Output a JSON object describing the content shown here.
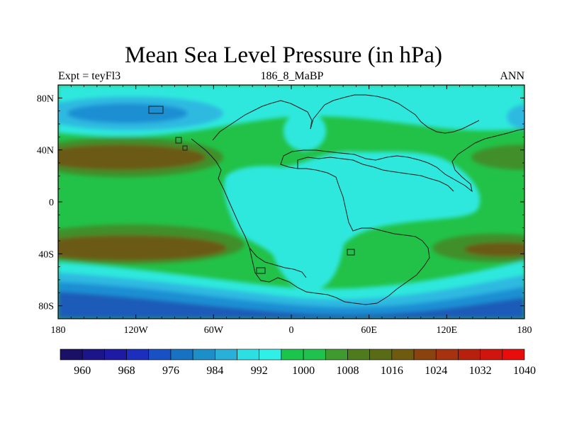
{
  "title": "Mean Sea Level Pressure (in hPa)",
  "left_label": "Expt = teyFl3",
  "center_label": "186_8_MaBP",
  "right_label": "ANN",
  "map": {
    "projection": "cylindrical-equidistant",
    "lon_range": [
      -180,
      180
    ],
    "lat_range": [
      -90,
      90
    ],
    "x_ticks": [
      {
        "value": -180,
        "label": "180"
      },
      {
        "value": -120,
        "label": "120W"
      },
      {
        "value": -60,
        "label": "60W"
      },
      {
        "value": 0,
        "label": "0"
      },
      {
        "value": 60,
        "label": "60E"
      },
      {
        "value": 120,
        "label": "120E"
      },
      {
        "value": 180,
        "label": "180"
      }
    ],
    "y_ticks": [
      {
        "value": 80,
        "label": "80N"
      },
      {
        "value": 40,
        "label": "40N"
      },
      {
        "value": 0,
        "label": "0"
      },
      {
        "value": -40,
        "label": "40S"
      },
      {
        "value": -80,
        "label": "80S"
      }
    ]
  },
  "colorbar": {
    "colors": [
      "#1a1066",
      "#1c158a",
      "#1f1aa3",
      "#1b2ebd",
      "#1851c4",
      "#1772c2",
      "#1c8fc9",
      "#28b0d8",
      "#2cdfe2",
      "#2ef0e6",
      "#1bc44a",
      "#1ec24c",
      "#3f9a2f",
      "#4e7c1d",
      "#5a6b16",
      "#6f5b10",
      "#8a420e",
      "#a63210",
      "#b8200e",
      "#d0150f",
      "#e80d0d"
    ],
    "labels": [
      "960",
      "968",
      "976",
      "984",
      "992",
      "1000",
      "1008",
      "1016",
      "1024",
      "1032",
      "1040"
    ]
  },
  "fill_colors": {
    "low_deep": "#1a5cb8",
    "low": "#1f8fd3",
    "mid_low": "#2fb9e1",
    "cyan": "#2de8dd",
    "green": "#22c248",
    "olive": "#3f8f2c",
    "brown": "#6b5a16"
  }
}
